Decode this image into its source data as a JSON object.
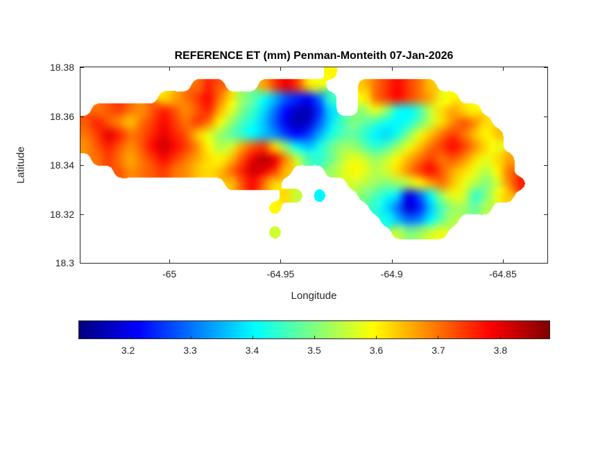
{
  "chart_data": {
    "type": "heatmap",
    "title": "REFERENCE ET (mm) Penman-Monteith 07-Jan-2026",
    "xlabel": "Longitude",
    "ylabel": "Latitude",
    "units": "mm",
    "colormap": "jet",
    "background": "#ffffff",
    "x_range": [
      -65.04,
      -64.83
    ],
    "y_range": [
      18.3,
      18.38
    ],
    "x_ticks": [
      -65,
      -64.95,
      -64.9,
      -64.85
    ],
    "x_tick_labels": [
      "-65",
      "-64.95",
      "-64.9",
      "-64.85"
    ],
    "y_ticks": [
      18.3,
      18.32,
      18.34,
      18.36,
      18.38
    ],
    "y_tick_labels": [
      "18.3",
      "18.32",
      "18.34",
      "18.36",
      "18.38"
    ],
    "color_range": [
      3.12,
      3.88
    ],
    "colorbar_orientation": "horizontal",
    "colorbar_ticks": [
      3.2,
      3.3,
      3.4,
      3.5,
      3.6,
      3.7,
      3.8
    ],
    "colorbar_tick_labels": [
      "3.2",
      "3.3",
      "3.4",
      "3.5",
      "3.6",
      "3.7",
      "3.8"
    ],
    "grid": {
      "lon_start": -65.0375,
      "lon_step": 0.005,
      "lat_start": 18.3775,
      "lat_step": -0.005,
      "note": "rows ordered north to south; null = sea (no data)",
      "values": [
        [
          null,
          null,
          null,
          null,
          null,
          null,
          null,
          null,
          null,
          null,
          null,
          null,
          null,
          null,
          null,
          null,
          null,
          null,
          null,
          null,
          null,
          null,
          3.6,
          null,
          null,
          null,
          null,
          null,
          null,
          null,
          null,
          null,
          null,
          null,
          null,
          null,
          null,
          null,
          null,
          null,
          null,
          null
        ],
        [
          null,
          null,
          null,
          null,
          null,
          null,
          null,
          null,
          null,
          null,
          3.7,
          3.76,
          3.72,
          null,
          null,
          null,
          3.66,
          3.74,
          3.8,
          3.74,
          3.62,
          3.58,
          null,
          null,
          null,
          3.64,
          3.7,
          3.74,
          3.78,
          3.74,
          3.7,
          3.64,
          null,
          null,
          null,
          null,
          null,
          null,
          null,
          null,
          null,
          null
        ],
        [
          null,
          null,
          null,
          null,
          null,
          null,
          null,
          3.62,
          3.66,
          3.7,
          3.74,
          3.78,
          3.7,
          3.62,
          3.52,
          3.48,
          3.42,
          3.35,
          3.28,
          3.24,
          3.22,
          3.3,
          3.45,
          null,
          null,
          3.6,
          3.7,
          3.74,
          3.78,
          3.74,
          3.7,
          3.66,
          3.58,
          3.6,
          null,
          null,
          null,
          null,
          null,
          null,
          null,
          null
        ],
        [
          null,
          3.7,
          3.72,
          3.74,
          3.7,
          3.68,
          3.72,
          3.76,
          3.72,
          3.68,
          3.72,
          3.76,
          3.66,
          3.58,
          3.5,
          3.45,
          3.38,
          3.3,
          3.22,
          3.17,
          3.16,
          3.25,
          3.38,
          null,
          null,
          3.52,
          3.58,
          3.52,
          3.42,
          3.4,
          3.45,
          3.55,
          3.62,
          3.66,
          3.62,
          3.6,
          null,
          null,
          null,
          null,
          null,
          null
        ],
        [
          3.72,
          3.76,
          3.72,
          3.68,
          3.64,
          3.7,
          3.74,
          3.78,
          3.74,
          3.7,
          3.74,
          3.7,
          3.6,
          3.52,
          3.46,
          3.42,
          3.36,
          3.28,
          3.2,
          3.16,
          3.18,
          3.28,
          3.38,
          3.45,
          3.5,
          3.48,
          3.45,
          3.42,
          3.4,
          3.42,
          3.48,
          3.55,
          3.62,
          3.68,
          3.72,
          3.68,
          3.62,
          null,
          null,
          null,
          null,
          null
        ],
        [
          3.7,
          3.74,
          3.8,
          3.76,
          3.7,
          3.72,
          3.76,
          3.8,
          3.76,
          3.72,
          3.64,
          3.58,
          3.52,
          3.48,
          3.44,
          3.4,
          3.36,
          3.32,
          3.26,
          3.22,
          3.26,
          3.34,
          3.42,
          3.46,
          3.48,
          3.44,
          3.4,
          3.38,
          3.42,
          3.5,
          3.58,
          3.64,
          3.7,
          3.74,
          3.7,
          3.64,
          3.6,
          3.64,
          null,
          null,
          null,
          null
        ],
        [
          3.68,
          3.72,
          3.76,
          3.72,
          3.68,
          3.72,
          3.78,
          3.82,
          3.78,
          3.74,
          3.68,
          3.6,
          3.54,
          3.56,
          3.66,
          3.72,
          3.74,
          3.62,
          3.5,
          3.4,
          3.36,
          3.42,
          3.48,
          3.52,
          3.52,
          3.48,
          3.44,
          3.46,
          3.52,
          3.58,
          3.64,
          3.7,
          3.74,
          3.78,
          3.74,
          3.68,
          3.62,
          3.58,
          null,
          null,
          null,
          null
        ],
        [
          null,
          3.7,
          3.74,
          3.7,
          3.66,
          3.7,
          3.74,
          3.78,
          3.74,
          3.7,
          3.66,
          3.62,
          3.6,
          3.64,
          3.72,
          3.8,
          3.84,
          3.8,
          3.68,
          3.55,
          3.46,
          3.44,
          3.48,
          3.54,
          3.58,
          3.56,
          3.52,
          3.55,
          3.6,
          3.65,
          3.7,
          3.74,
          3.7,
          3.72,
          3.68,
          3.62,
          3.58,
          3.62,
          3.66,
          null,
          null,
          null
        ],
        [
          null,
          null,
          null,
          3.72,
          3.68,
          3.7,
          3.72,
          3.74,
          3.7,
          3.68,
          3.64,
          3.62,
          3.64,
          3.7,
          3.76,
          3.82,
          3.8,
          3.74,
          3.64,
          null,
          null,
          null,
          3.52,
          3.56,
          3.6,
          3.58,
          3.54,
          3.56,
          3.62,
          3.68,
          3.74,
          3.78,
          3.72,
          3.66,
          3.62,
          3.58,
          3.54,
          3.6,
          3.7,
          null,
          null,
          null
        ],
        [
          null,
          null,
          null,
          null,
          null,
          null,
          null,
          null,
          null,
          null,
          null,
          null,
          null,
          3.64,
          3.72,
          3.78,
          3.7,
          3.62,
          null,
          null,
          null,
          null,
          null,
          null,
          3.56,
          3.54,
          3.52,
          3.5,
          3.52,
          3.55,
          3.6,
          3.66,
          3.7,
          3.64,
          3.58,
          3.54,
          3.5,
          3.56,
          3.68,
          3.76,
          null,
          null
        ],
        [
          null,
          null,
          null,
          null,
          null,
          null,
          null,
          null,
          null,
          null,
          null,
          null,
          null,
          null,
          null,
          null,
          null,
          null,
          3.62,
          3.55,
          null,
          3.4,
          null,
          null,
          null,
          3.5,
          3.46,
          3.42,
          3.38,
          3.2,
          3.28,
          3.4,
          3.52,
          3.58,
          3.56,
          3.44,
          3.5,
          3.58,
          3.64,
          null,
          null,
          null
        ],
        [
          null,
          null,
          null,
          null,
          null,
          null,
          null,
          null,
          null,
          null,
          null,
          null,
          null,
          null,
          null,
          null,
          null,
          3.6,
          null,
          null,
          null,
          null,
          null,
          null,
          null,
          null,
          3.44,
          3.38,
          3.3,
          3.18,
          3.24,
          3.36,
          3.46,
          3.52,
          3.52,
          3.48,
          3.54,
          null,
          null,
          null,
          null,
          null
        ],
        [
          null,
          null,
          null,
          null,
          null,
          null,
          null,
          null,
          null,
          null,
          null,
          null,
          null,
          null,
          null,
          null,
          null,
          null,
          null,
          null,
          null,
          null,
          null,
          null,
          null,
          null,
          null,
          3.42,
          3.36,
          3.3,
          3.32,
          3.4,
          3.48,
          3.54,
          null,
          null,
          null,
          null,
          null,
          null,
          null,
          null
        ],
        [
          null,
          null,
          null,
          null,
          null,
          null,
          null,
          null,
          null,
          null,
          null,
          null,
          null,
          null,
          null,
          null,
          null,
          3.56,
          null,
          null,
          null,
          null,
          null,
          null,
          null,
          null,
          null,
          null,
          3.55,
          3.5,
          3.52,
          3.56,
          3.58,
          null,
          null,
          null,
          null,
          null,
          null,
          null,
          null,
          null
        ],
        [
          null,
          null,
          null,
          null,
          null,
          null,
          null,
          null,
          null,
          null,
          null,
          null,
          null,
          null,
          null,
          null,
          null,
          null,
          null,
          null,
          null,
          null,
          null,
          null,
          null,
          null,
          null,
          null,
          null,
          null,
          null,
          null,
          null,
          null,
          null,
          null,
          null,
          null,
          null,
          null,
          null,
          null
        ],
        [
          null,
          null,
          null,
          null,
          null,
          null,
          null,
          null,
          null,
          null,
          null,
          null,
          null,
          null,
          null,
          null,
          null,
          null,
          null,
          null,
          null,
          null,
          null,
          null,
          null,
          null,
          null,
          null,
          null,
          null,
          null,
          null,
          null,
          null,
          null,
          null,
          null,
          null,
          null,
          null,
          null,
          null
        ]
      ]
    }
  }
}
